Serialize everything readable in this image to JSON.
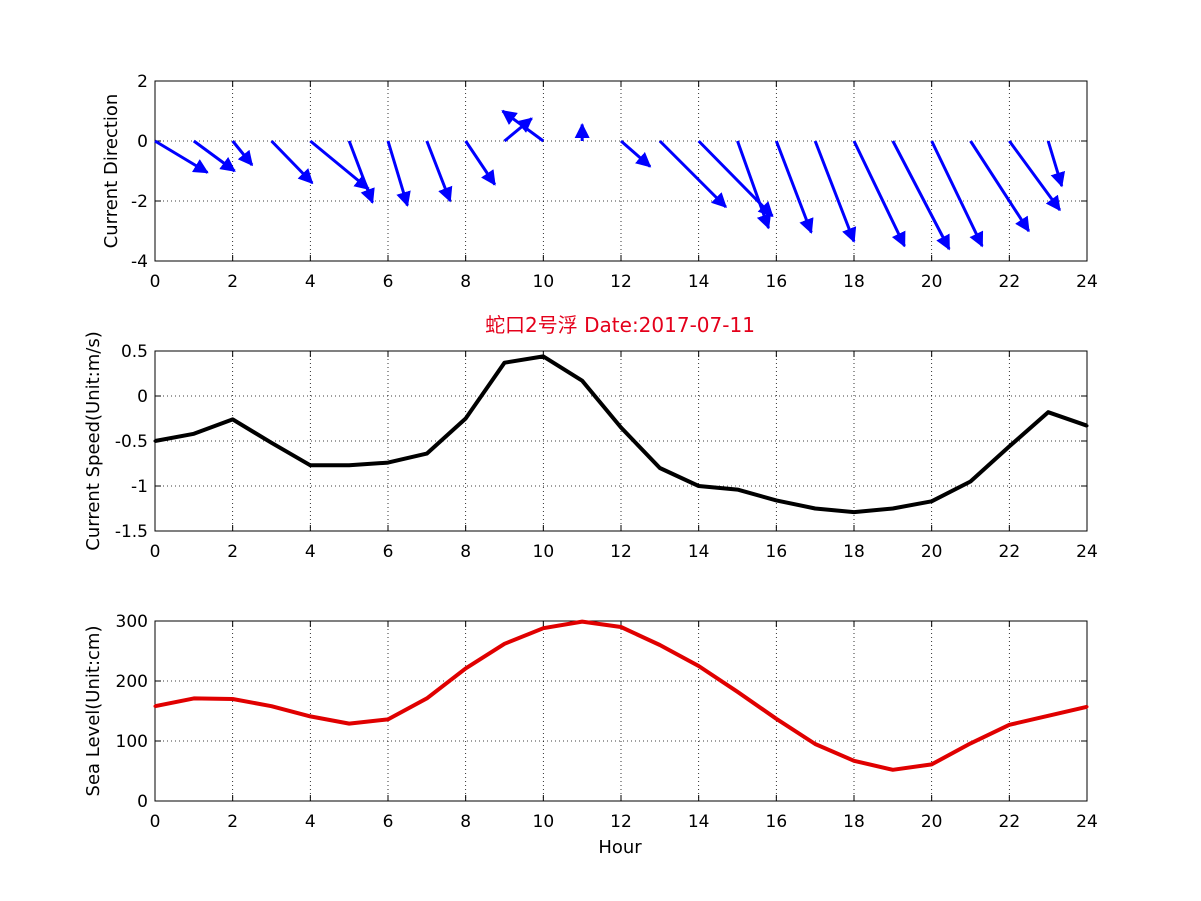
{
  "colors": {
    "direction_arrows": "#0000ff",
    "speed_line": "#000000",
    "sea_level_line": "#e00000",
    "title": "#e4001b"
  },
  "chart_data": [
    {
      "type": "quiver",
      "ylabel": "Current Direction",
      "xlabel": "",
      "xlim": [
        0,
        24
      ],
      "ylim": [
        -4,
        2
      ],
      "xticks": [
        "0",
        "2",
        "4",
        "6",
        "8",
        "10",
        "12",
        "14",
        "16",
        "18",
        "20",
        "22",
        "24"
      ],
      "yticks": [
        "-4",
        "-2",
        "0",
        "2"
      ],
      "grid": true,
      "arrows": [
        {
          "x": 0,
          "u": 1.35,
          "v": -1.05
        },
        {
          "x": 1,
          "u": 1.05,
          "v": -1.0
        },
        {
          "x": 2,
          "u": 0.5,
          "v": -0.8
        },
        {
          "x": 3,
          "u": 1.05,
          "v": -1.4
        },
        {
          "x": 4,
          "u": 1.5,
          "v": -1.6
        },
        {
          "x": 5,
          "u": 0.6,
          "v": -2.05
        },
        {
          "x": 6,
          "u": 0.5,
          "v": -2.15
        },
        {
          "x": 7,
          "u": 0.6,
          "v": -2.0
        },
        {
          "x": 8,
          "u": 0.75,
          "v": -1.45
        },
        {
          "x": 9,
          "u": 0.7,
          "v": 0.75
        },
        {
          "x": 10,
          "u": -1.05,
          "v": 1.0
        },
        {
          "x": 11,
          "u": 0.0,
          "v": 0.55
        },
        {
          "x": 12,
          "u": 0.75,
          "v": -0.85
        },
        {
          "x": 13,
          "u": 1.7,
          "v": -2.2
        },
        {
          "x": 14,
          "u": 1.9,
          "v": -2.5
        },
        {
          "x": 15,
          "u": 0.8,
          "v": -2.9
        },
        {
          "x": 16,
          "u": 0.9,
          "v": -3.05
        },
        {
          "x": 17,
          "u": 1.0,
          "v": -3.35
        },
        {
          "x": 18,
          "u": 1.3,
          "v": -3.5
        },
        {
          "x": 19,
          "u": 1.45,
          "v": -3.6
        },
        {
          "x": 20,
          "u": 1.3,
          "v": -3.5
        },
        {
          "x": 21,
          "u": 1.5,
          "v": -3.0
        },
        {
          "x": 22,
          "u": 1.3,
          "v": -2.3
        },
        {
          "x": 23,
          "u": 0.35,
          "v": -1.5
        }
      ]
    },
    {
      "type": "line",
      "title": "蛇口2号浮   Date:2017-07-11",
      "ylabel": "Current Speed(Unit:m/s)",
      "xlabel": "",
      "xlim": [
        0,
        24
      ],
      "ylim": [
        -1.5,
        0.5
      ],
      "xticks": [
        "0",
        "2",
        "4",
        "6",
        "8",
        "10",
        "12",
        "14",
        "16",
        "18",
        "20",
        "22",
        "24"
      ],
      "yticks": [
        "-1.5",
        "-1",
        "-0.5",
        "0",
        "0.5"
      ],
      "grid": true,
      "series": [
        {
          "x": [
            0,
            1,
            2,
            3,
            4,
            5,
            6,
            7,
            8,
            9,
            10,
            11,
            12,
            13,
            14,
            15,
            16,
            17,
            18,
            19,
            20,
            21,
            22,
            23,
            24
          ],
          "values": [
            -0.5,
            -0.42,
            -0.26,
            -0.52,
            -0.77,
            -0.77,
            -0.74,
            -0.64,
            -0.25,
            0.37,
            0.44,
            0.17,
            -0.35,
            -0.8,
            -1.0,
            -1.04,
            -1.16,
            -1.25,
            -1.29,
            -1.25,
            -1.17,
            -0.95,
            -0.56,
            -0.18,
            -0.33
          ]
        }
      ]
    },
    {
      "type": "line",
      "ylabel": "Sea Level(Unit:cm)",
      "xlabel": "Hour",
      "xlim": [
        0,
        24
      ],
      "ylim": [
        0,
        300
      ],
      "xticks": [
        "0",
        "2",
        "4",
        "6",
        "8",
        "10",
        "12",
        "14",
        "16",
        "18",
        "20",
        "22",
        "24"
      ],
      "yticks": [
        "0",
        "100",
        "200",
        "300"
      ],
      "grid": true,
      "series": [
        {
          "x": [
            0,
            1,
            2,
            3,
            4,
            5,
            6,
            7,
            8,
            9,
            10,
            11,
            12,
            13,
            14,
            15,
            16,
            17,
            18,
            19,
            20,
            21,
            22,
            23,
            24
          ],
          "values": [
            158,
            171,
            170,
            158,
            141,
            129,
            136,
            171,
            221,
            262,
            288,
            299,
            290,
            260,
            225,
            182,
            137,
            95,
            67,
            52,
            61,
            96,
            127,
            142,
            157
          ]
        }
      ]
    }
  ]
}
